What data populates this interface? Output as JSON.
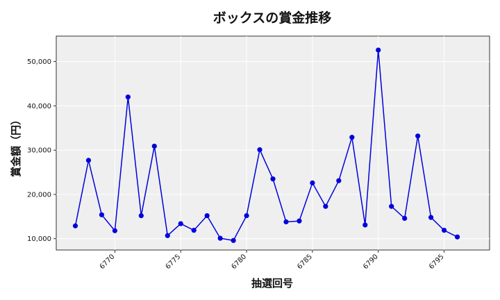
{
  "chart_data": {
    "type": "line",
    "title": "ボックスの賞金推移",
    "xlabel": "抽選回号",
    "ylabel": "賞金額（円）",
    "x": [
      6767,
      6768,
      6769,
      6770,
      6771,
      6772,
      6773,
      6774,
      6775,
      6776,
      6777,
      6778,
      6779,
      6780,
      6781,
      6782,
      6783,
      6784,
      6785,
      6786,
      6787,
      6788,
      6789,
      6790,
      6791,
      6792,
      6793,
      6794,
      6795,
      6796
    ],
    "series": [
      {
        "values": [
          12900,
          27700,
          15400,
          11800,
          42000,
          15200,
          30900,
          10700,
          13400,
          11900,
          15200,
          10100,
          9600,
          15200,
          30100,
          23500,
          13800,
          14000,
          22600,
          17300,
          23100,
          32900,
          13100,
          52600,
          17300,
          14600,
          33200,
          14800,
          11900,
          10400
        ],
        "color": "#0000dd"
      }
    ],
    "xticks": [
      "6770",
      "6775",
      "6780",
      "6785",
      "6790",
      "6795"
    ],
    "yticks": [
      "10,000",
      "20,000",
      "30,000",
      "40,000",
      "50,000"
    ],
    "xlim": [
      6765.55,
      6798.45
    ],
    "ylim": [
      7450,
      55750
    ],
    "grid": true,
    "background": "#efefef",
    "gridColor": "#ffffff"
  }
}
